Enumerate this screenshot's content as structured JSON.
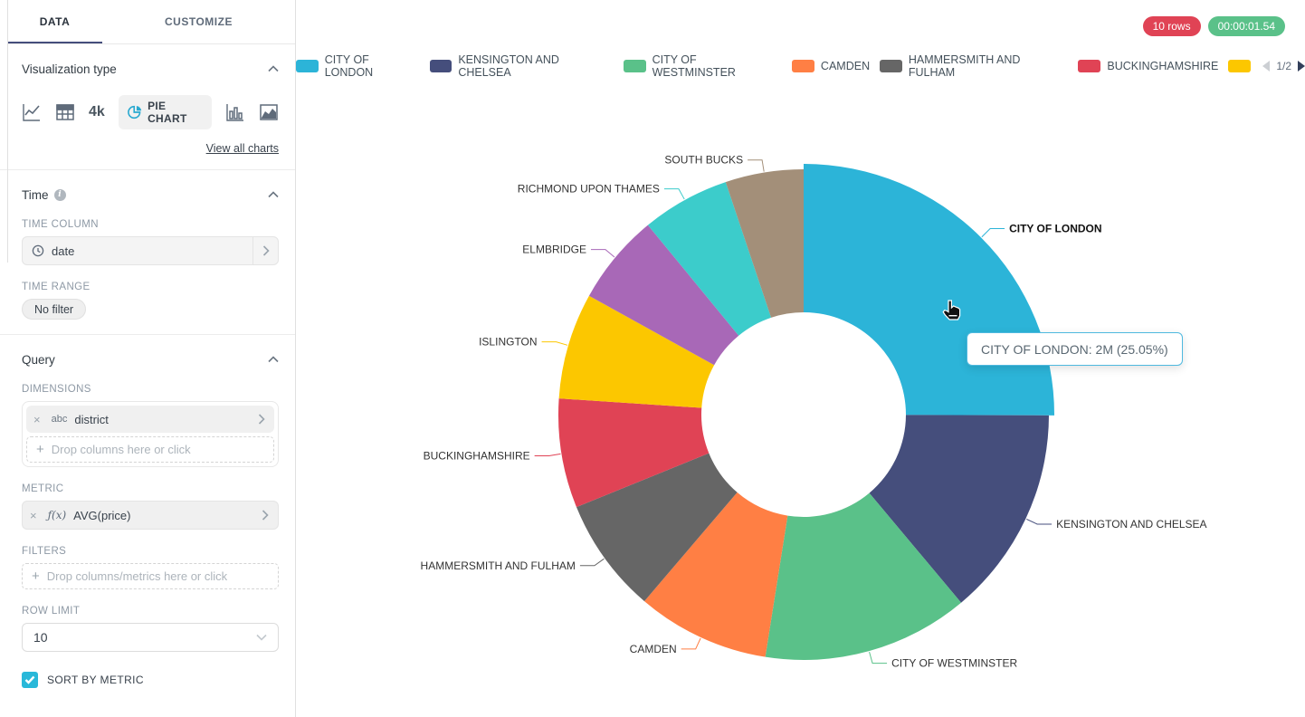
{
  "sidebar": {
    "tabs": {
      "data": "DATA",
      "customize": "CUSTOMIZE"
    },
    "viz": {
      "title": "Visualization type",
      "big_number_label": "4k",
      "selected_chart": "PIE CHART",
      "view_all": "View all charts"
    },
    "time": {
      "title": "Time",
      "column_label": "TIME COLUMN",
      "column_value": "date",
      "range_label": "TIME RANGE",
      "range_value": "No filter"
    },
    "query": {
      "title": "Query",
      "dimensions_label": "DIMENSIONS",
      "dimension_tag": "abc",
      "dimension_value": "district",
      "dimensions_placeholder": "Drop columns here or click",
      "metric_label": "METRIC",
      "metric_tag": "ƒ(x)",
      "metric_value": "AVG(price)",
      "filters_label": "FILTERS",
      "filters_placeholder": "Drop columns/metrics here or click",
      "row_limit_label": "ROW LIMIT",
      "row_limit_value": "10",
      "sort_by_metric_label": "SORT BY METRIC"
    }
  },
  "header": {
    "rows_badge": "10 rows",
    "rows_badge_color": "#E04355",
    "duration_badge": "00:00:01.54",
    "duration_badge_color": "#5AC189"
  },
  "legend": {
    "page_indicator": "1/2",
    "items": [
      {
        "label": "CITY OF LONDON",
        "color": "#2CB4D8"
      },
      {
        "label": "KENSINGTON AND CHELSEA",
        "color": "#454E7C"
      },
      {
        "label": "CITY OF WESTMINSTER",
        "color": "#5AC189"
      },
      {
        "label": "CAMDEN",
        "color": "#FF7F44"
      },
      {
        "label": "HAMMERSMITH AND FULHAM",
        "color": "#666666"
      },
      {
        "label": "BUCKINGHAMSHIRE",
        "color": "#E04355"
      },
      {
        "label": "",
        "color": "#FCC700"
      }
    ]
  },
  "tooltip": {
    "text": "CITY OF LONDON: 2M (25.05%)"
  },
  "chart_data": {
    "type": "pie",
    "donut": true,
    "dimension": "district",
    "metric": "AVG(price)",
    "categories": [
      "CITY OF LONDON",
      "KENSINGTON AND CHELSEA",
      "CITY OF WESTMINSTER",
      "CAMDEN",
      "HAMMERSMITH AND FULHAM",
      "BUCKINGHAMSHIRE",
      "ISLINGTON",
      "ELMBRIDGE",
      "RICHMOND UPON THAMES",
      "SOUTH BUCKS"
    ],
    "values_percent": [
      25.05,
      13.85,
      13.6,
      8.75,
      7.6,
      7.2,
      7.0,
      6.0,
      5.8,
      5.15
    ],
    "colors": [
      "#2CB4D8",
      "#454E7C",
      "#5AC189",
      "#FF7F44",
      "#666666",
      "#E04355",
      "#FCC700",
      "#A868B7",
      "#3CCCCB",
      "#A38F79"
    ],
    "hovered_slice": "CITY OF LONDON",
    "hovered_value": "2M",
    "hovered_percent": "25.05%",
    "legend_position": "top",
    "label_type": "category_name"
  }
}
